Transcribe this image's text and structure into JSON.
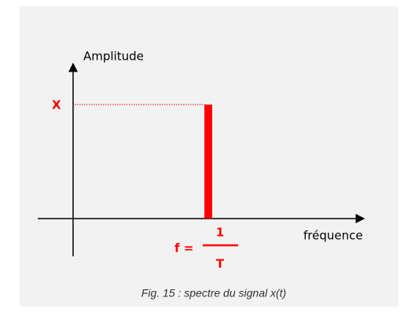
{
  "diagram": {
    "y_axis_label": "Amplitude",
    "x_axis_label": "fréquence",
    "amplitude_label": "X",
    "frequency": {
      "prefix": "f =",
      "numerator": "1",
      "denominator": "T"
    },
    "caption": "Fig. 15 : spectre du signal x(t)"
  }
}
